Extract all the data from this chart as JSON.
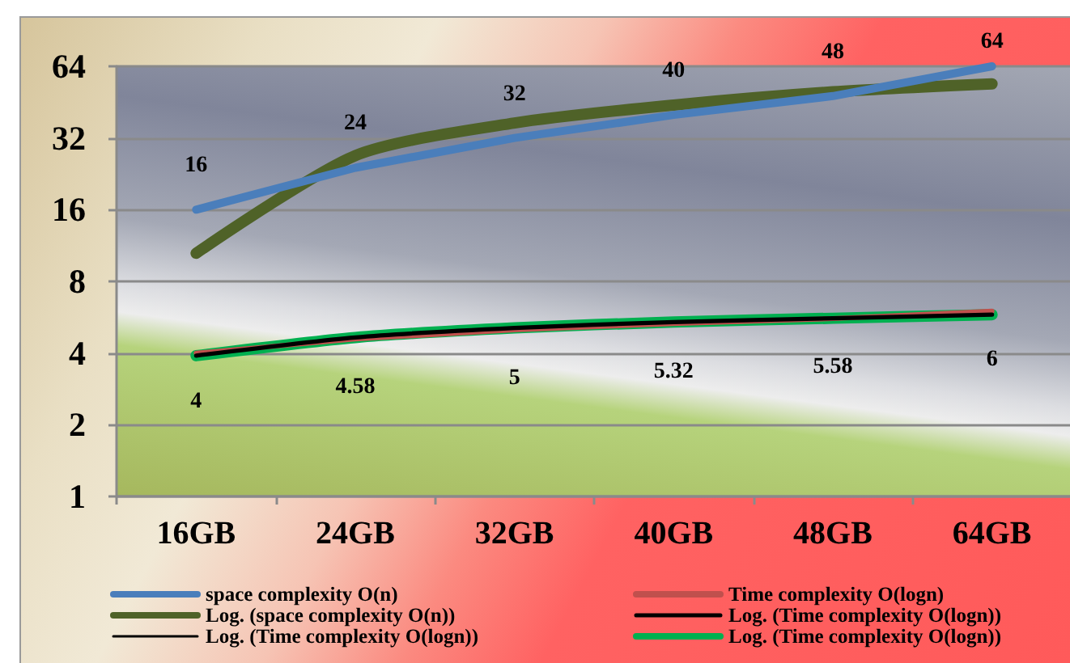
{
  "chart_data": {
    "type": "line",
    "categories": [
      "16GB",
      "24GB",
      "32GB",
      "40GB",
      "48GB",
      "64GB"
    ],
    "series": [
      {
        "name": "space complexity O(n)",
        "color": "#4a7ebb",
        "values": [
          16,
          24,
          32,
          40,
          48,
          64
        ],
        "value_labels": [
          "16",
          "24",
          "32",
          "40",
          "48",
          "64"
        ]
      },
      {
        "name": "Time complexity O(logn)",
        "color": "#c0504d",
        "values": [
          4,
          4.58,
          5,
          5.32,
          5.58,
          6
        ],
        "value_labels": [
          "4",
          "4.58",
          "5",
          "5.32",
          "5.58",
          "6"
        ]
      },
      {
        "name": "Log. (space complexity O(n))",
        "color": "#4f6228",
        "values": [
          10.5,
          27,
          37,
          44,
          50,
          54
        ]
      },
      {
        "name": "Log. (Time complexity O(logn))",
        "color": "#000000",
        "values": [
          3.9,
          4.65,
          5.1,
          5.4,
          5.6,
          5.8
        ]
      },
      {
        "name": "Log. (Time complexity O(logn))",
        "color": "#000000",
        "values": [
          null,
          null,
          null,
          null,
          null,
          null
        ]
      },
      {
        "name": "Log. (Time complexity O(logn))",
        "color": "#00b050",
        "values": [
          3.9,
          4.65,
          5.1,
          5.4,
          5.6,
          5.8
        ]
      }
    ],
    "ylim": [
      1,
      64
    ],
    "yticks": [
      1,
      2,
      4,
      8,
      16,
      32,
      64
    ],
    "log": "y",
    "grid": "y",
    "legend": "bottom",
    "marker": "none",
    "line_style": "solid"
  }
}
